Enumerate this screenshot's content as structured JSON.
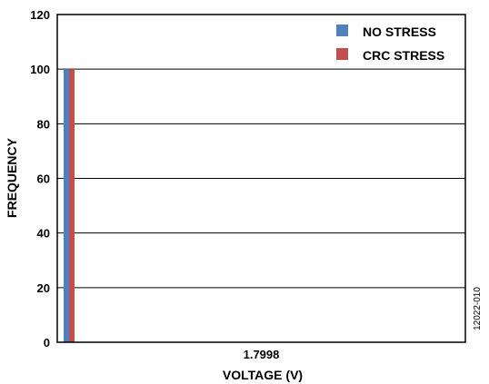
{
  "chart_data": {
    "type": "bar",
    "categories": [
      "1.7998"
    ],
    "series": [
      {
        "name": "NO STRESS",
        "values": [
          100
        ],
        "color": "#4f81bd"
      },
      {
        "name": "CRC STRESS",
        "values": [
          100
        ],
        "color": "#c0504d"
      }
    ],
    "xlabel": "VOLTAGE (V)",
    "ylabel": "FREQUENCY",
    "ylim": [
      0,
      120
    ],
    "yticks": [
      0,
      20,
      40,
      60,
      80,
      100,
      120
    ],
    "grid": true,
    "legend_position": "top-right"
  },
  "figure_id": "12022-010"
}
